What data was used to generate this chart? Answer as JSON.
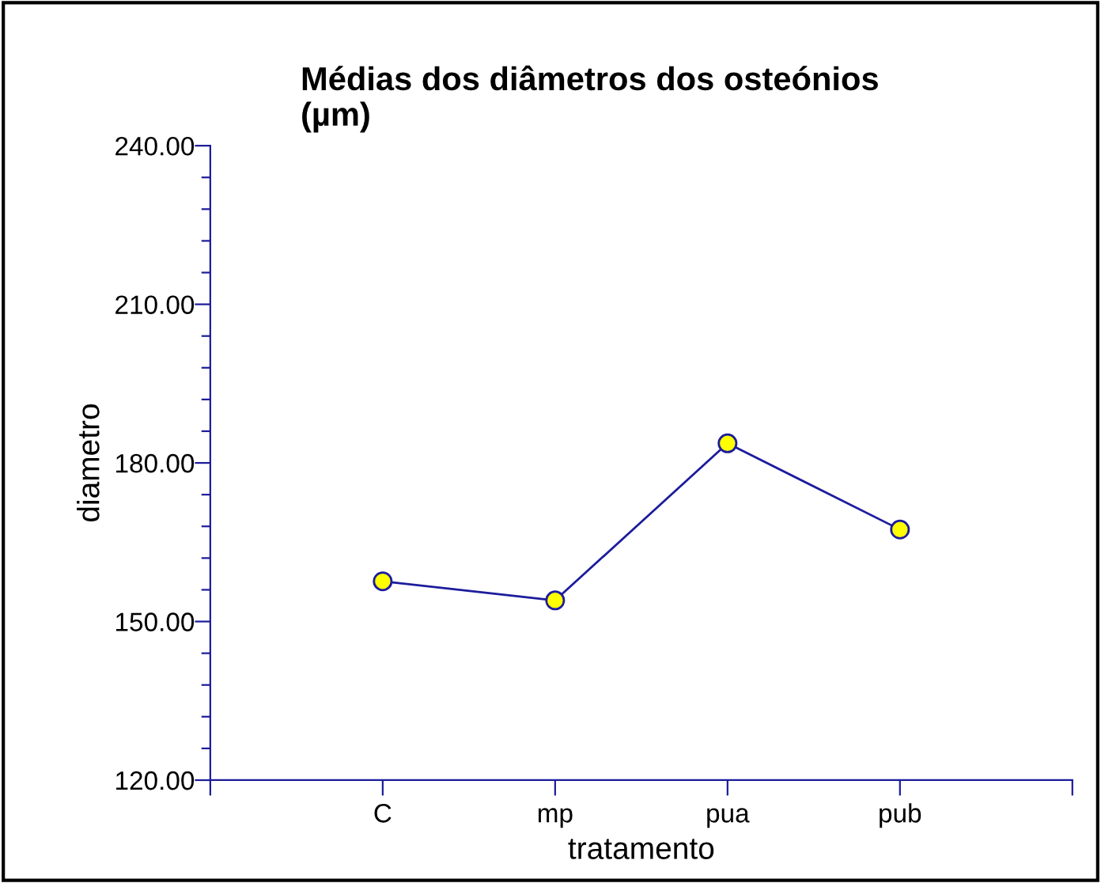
{
  "chart_data": {
    "type": "line",
    "title": "Médias dos diâmetros dos osteónios\n(µm)",
    "xlabel": "tratamento",
    "ylabel": "diametro",
    "categories": [
      "C",
      "mp",
      "pua",
      "pub"
    ],
    "series": [
      {
        "color": "#1c1c9c",
        "values": [
          157.6,
          154.0,
          183.7,
          167.4
        ]
      }
    ],
    "ylim": [
      120,
      240
    ],
    "yticks": [
      {
        "value": 120,
        "label": "120.00"
      },
      {
        "value": 126,
        "label": null
      },
      {
        "value": 132,
        "label": null
      },
      {
        "value": 138,
        "label": null
      },
      {
        "value": 144,
        "label": null
      },
      {
        "value": 150,
        "label": "150.00"
      },
      {
        "value": 156,
        "label": null
      },
      {
        "value": 162,
        "label": null
      },
      {
        "value": 168,
        "label": null
      },
      {
        "value": 174,
        "label": null
      },
      {
        "value": 180,
        "label": "180.00"
      },
      {
        "value": 186,
        "label": null
      },
      {
        "value": 192,
        "label": null
      },
      {
        "value": 198,
        "label": null
      },
      {
        "value": 204,
        "label": null
      },
      {
        "value": 210,
        "label": "210.00"
      },
      {
        "value": 216,
        "label": null
      },
      {
        "value": 222,
        "label": null
      },
      {
        "value": 228,
        "label": null
      },
      {
        "value": 234,
        "label": null
      },
      {
        "value": 240,
        "label": "240.00"
      }
    ],
    "marker": "circle",
    "line_style": "solid",
    "grid": false,
    "legend": false
  }
}
